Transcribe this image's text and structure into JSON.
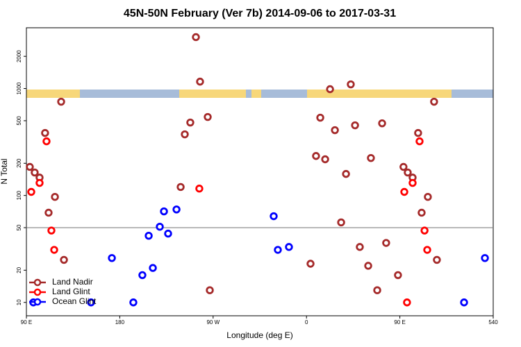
{
  "chart_data": {
    "type": "scatter",
    "title": "45N-50N February (Ver 7b)   2014-09-06 to 2017-03-31",
    "x_label": "Longitude (deg E)",
    "y_label": "N Total",
    "xlim": [
      90,
      540
    ],
    "ylim": [
      7.5,
      3700
    ],
    "ylog": true,
    "xticks": [
      {
        "value": 90,
        "label": "90 E"
      },
      180,
      {
        "value": 270,
        "label": "90 W"
      },
      {
        "value": 360,
        "label": "0"
      },
      {
        "value": 450,
        "label": "90 E"
      },
      540
    ],
    "yticks": [
      10,
      20,
      50,
      100,
      200,
      500,
      1000,
      2000
    ],
    "reference_line": 50,
    "legend": "bottom-left",
    "series": [
      {
        "name": "Land Nadir",
        "color": "#a52a2a",
        "x": [
          93.3,
          98,
          102.7,
          108,
          111.4,
          117.5,
          123.5,
          126.2,
          238.7,
          242.7,
          248,
          253.4,
          257.4,
          264.8,
          266.8,
          363.9,
          369.2,
          373.3,
          378,
          382.7,
          387.4,
          393.4,
          398.1,
          402.7,
          406.8,
          411.4,
          419.5,
          422.1,
          428.2,
          432.9,
          436.8,
          448.2,
          453.5,
          457.6,
          462.3,
          467.6,
          471,
          477,
          483,
          485.7
        ],
        "values": [
          185,
          164,
          147,
          384,
          69,
          97,
          753,
          25,
          120,
          373,
          481,
          3025,
          1160,
          542,
          13,
          23,
          234,
          534,
          218,
          986,
          408,
          56,
          159,
          1094,
          453,
          33,
          22,
          224,
          13,
          473,
          36,
          18,
          185,
          164,
          147,
          384,
          69,
          97,
          753,
          25
        ]
      },
      {
        "name": "Land Glint",
        "color": "#ff0000",
        "x": [
          94.7,
          102.7,
          109.4,
          114.1,
          116.8,
          256.7,
          454.3,
          462.3,
          469,
          473.8,
          476.4,
          456.9
        ],
        "values": [
          108,
          131,
          321,
          47,
          31,
          116,
          108,
          131,
          321,
          47,
          31,
          10
        ]
      },
      {
        "name": "Ocean Glint",
        "color": "#0000ff",
        "x": [
          96.7,
          152.3,
          172.4,
          193.1,
          201.8,
          207.9,
          211.9,
          218.6,
          222.6,
          226.6,
          234.7,
          328.4,
          332.4,
          343.1,
          511.9,
          532
        ],
        "values": [
          10,
          10,
          26,
          10,
          18,
          42,
          21,
          51,
          71,
          44,
          74,
          64,
          31,
          33,
          10,
          26
        ]
      }
    ]
  }
}
